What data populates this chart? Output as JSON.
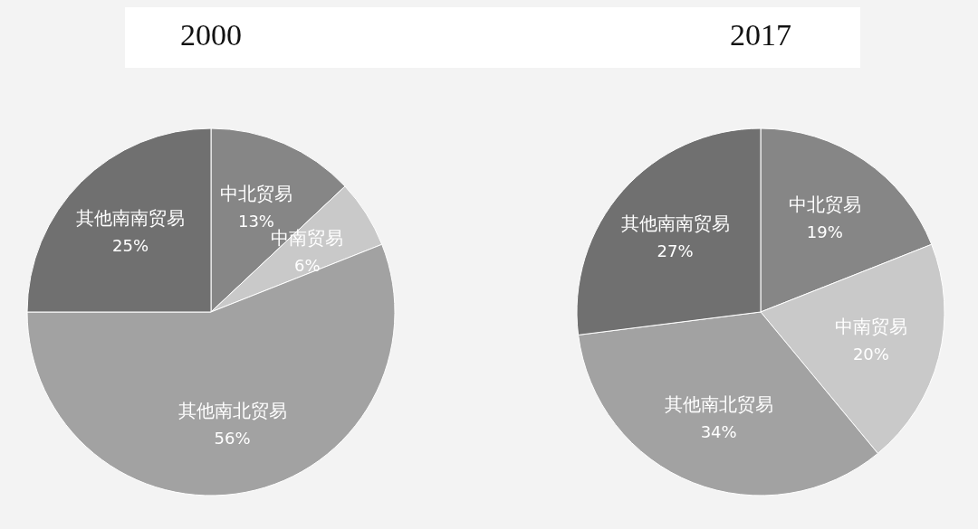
{
  "chart_data": [
    {
      "type": "pie",
      "title": "2000",
      "categories": [
        "中北贸易",
        "中南贸易",
        "其他南北贸易",
        "其他南南贸易"
      ],
      "values": [
        13,
        6,
        56,
        25
      ],
      "colors": [
        "#868686",
        "#c9c9c9",
        "#a2a2a2",
        "#707070"
      ],
      "value_labels": [
        "13%",
        "6%",
        "56%",
        "25%"
      ]
    },
    {
      "type": "pie",
      "title": "2017",
      "categories": [
        "中北贸易",
        "中南贸易",
        "其他南北贸易",
        "其他南南贸易"
      ],
      "values": [
        19,
        20,
        34,
        27
      ],
      "colors": [
        "#868686",
        "#c9c9c9",
        "#a2a2a2",
        "#707070"
      ],
      "value_labels": [
        "19%",
        "20%",
        "34%",
        "27%"
      ]
    }
  ]
}
